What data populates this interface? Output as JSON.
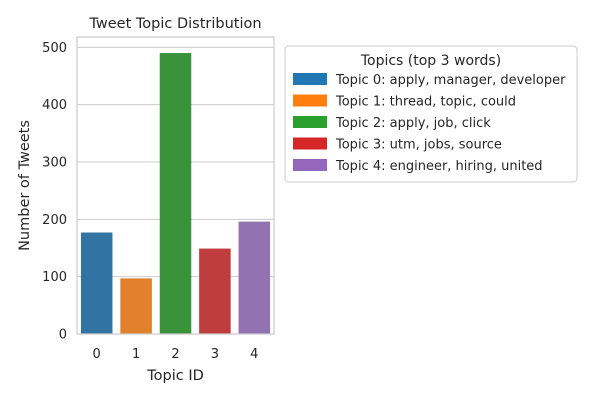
{
  "chart_data": {
    "type": "bar",
    "title": "Tweet Topic Distribution",
    "xlabel": "Topic ID",
    "ylabel": "Number of Tweets",
    "categories": [
      "0",
      "1",
      "2",
      "3",
      "4"
    ],
    "values": [
      177,
      97,
      490,
      149,
      196
    ],
    "colors": [
      "#3274a1",
      "#e1812c",
      "#3a923a",
      "#c03d3e",
      "#9372b2"
    ],
    "ylim": [
      0,
      518
    ],
    "yticks": [
      0,
      100,
      200,
      300,
      400,
      500
    ],
    "grid": true,
    "legend": {
      "placement": "outside-right",
      "title": "Topics (top 3 words)",
      "entries": [
        {
          "label": "Topic 0: apply, manager, developer",
          "color": "#1f77b4"
        },
        {
          "label": "Topic 1: thread, topic, could",
          "color": "#ff7f0e"
        },
        {
          "label": "Topic 2: apply, job, click",
          "color": "#2ca02c"
        },
        {
          "label": "Topic 3: utm, jobs, source",
          "color": "#d62728"
        },
        {
          "label": "Topic 4: engineer, hiring, united",
          "color": "#9467bd"
        }
      ]
    }
  }
}
